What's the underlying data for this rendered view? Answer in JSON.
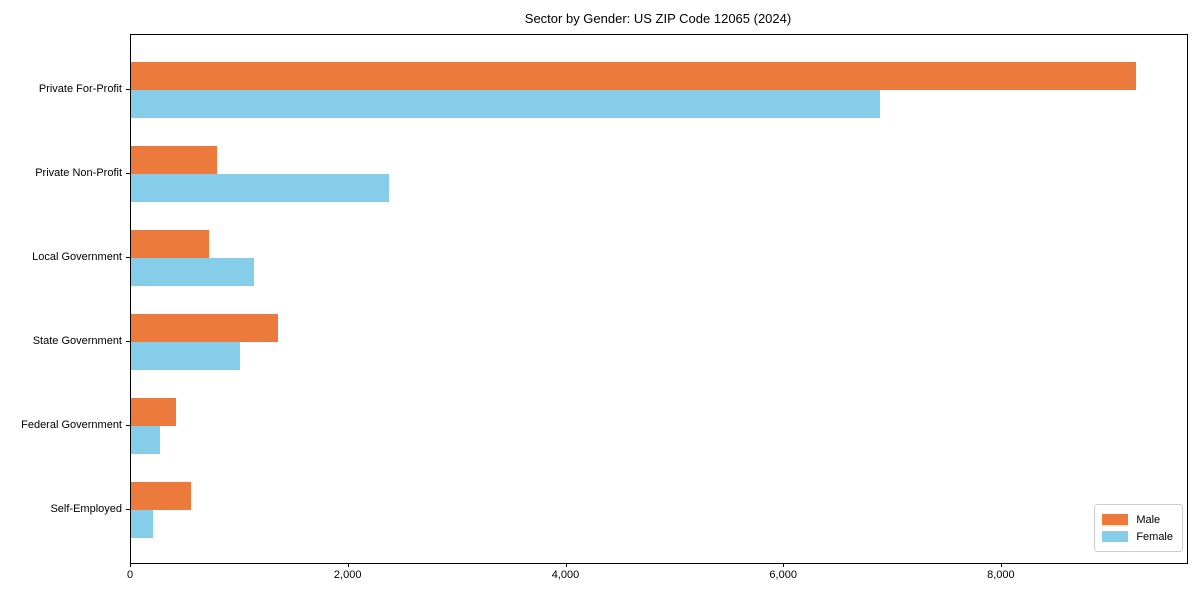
{
  "chart_data": {
    "type": "bar",
    "orientation": "horizontal",
    "title": "Sector by Gender: US ZIP Code 12065 (2024)",
    "categories": [
      "Private For-Profit",
      "Private Non-Profit",
      "Local Government",
      "State Government",
      "Federal Government",
      "Self-Employed"
    ],
    "series": [
      {
        "name": "Male",
        "color": "#EC7A3C",
        "values": [
          9230,
          790,
          720,
          1350,
          410,
          550
        ]
      },
      {
        "name": "Female",
        "color": "#85CDE8",
        "values": [
          6880,
          2370,
          1130,
          1000,
          265,
          200
        ]
      }
    ],
    "xlabel": "",
    "ylabel": "",
    "xlim": [
      0,
      9700
    ],
    "xticks": [
      0,
      2000,
      4000,
      6000,
      8000
    ],
    "xtick_labels": [
      "0",
      "2,000",
      "4,000",
      "6,000",
      "8,000"
    ],
    "grid": false,
    "legend": {
      "position": "lower right",
      "entries": [
        "Male",
        "Female"
      ]
    }
  }
}
